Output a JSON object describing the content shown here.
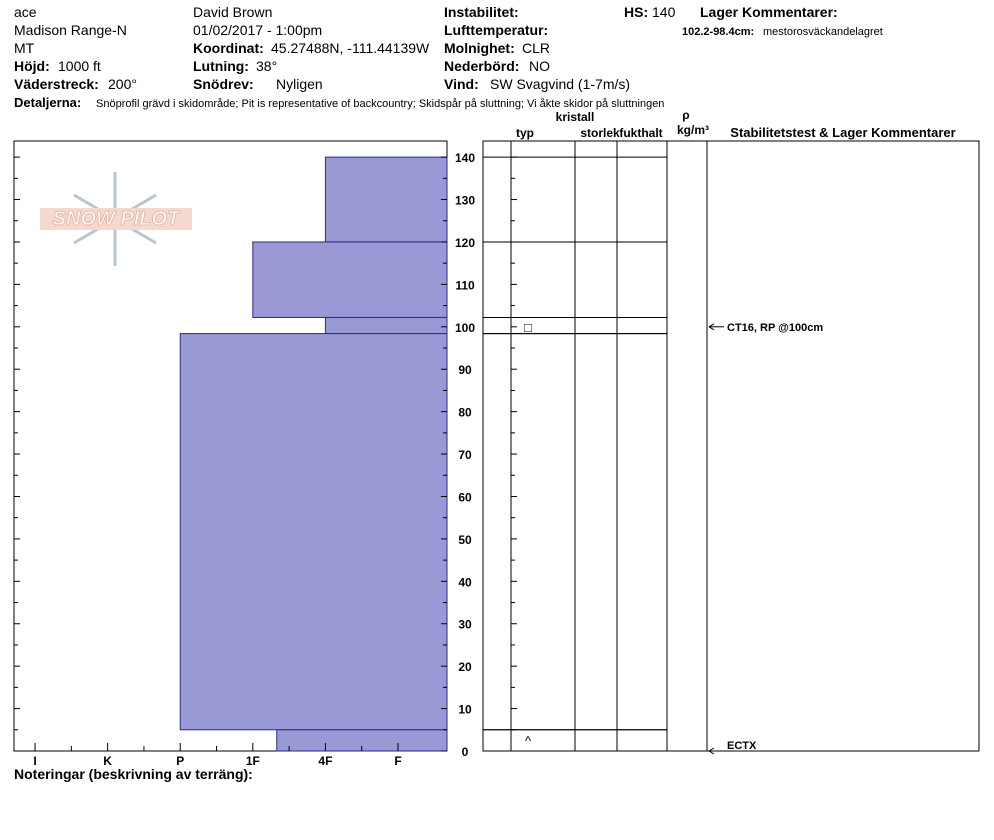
{
  "header": {
    "location": "ace",
    "range": "Madison Range-N",
    "state": "MT",
    "elevation_label": "Höjd:",
    "elevation": "1000 ft",
    "aspect_label": "Väderstreck:",
    "aspect": "200°",
    "observer": "David Brown",
    "datetime": "01/02/2017 - 1:00pm",
    "coord_label": "Koordinat:",
    "coord": "45.27488N, -111.44139W",
    "slope_label": "Lutning:",
    "slope": "38°",
    "transport_label": "Snödrev:",
    "transport": "Nyligen",
    "instability_label": "Instabilitet:",
    "air_temp_label": "Lufttemperatur:",
    "sky_label": "Molnighet:",
    "sky": "CLR",
    "precip_label": "Nederbörd:",
    "precip": "NO",
    "wind_label": "Vind:",
    "wind": "SW  Svagvind (1-7m/s)",
    "hs_label": "HS:",
    "hs": 140,
    "layer_comments_label": "Lager Kommentarer:",
    "layer_comment_depth": "102.2-98.4cm:",
    "layer_comment": "mestorosväckandelagret",
    "details_label": "Detaljerna:",
    "details": "Snöprofil grävd i skidområde;  Pit is representative of backcountry;  Skidspår på sluttning;  Vi åkte skidor på sluttningen"
  },
  "logo": "SNOW PILOT",
  "notes_label": "Noteringar (beskrivning av terräng):",
  "columns": {
    "type": "typ",
    "size_top": "kristall",
    "size": "storlek",
    "moisture": "fukthalt",
    "density_top": "ρ",
    "density": "kg/m³",
    "tests": "Stabilitetstest & Lager Kommentarer"
  },
  "chart_data": {
    "type": "snow-profile",
    "xlim": [
      0.325,
      6.29
    ],
    "xticks": [
      {
        "value": 6,
        "label": "I"
      },
      {
        "value": 5,
        "label": "K"
      },
      {
        "value": 4,
        "label": "P"
      },
      {
        "value": 3,
        "label": "1F"
      },
      {
        "value": 2,
        "label": "4F"
      },
      {
        "value": 1,
        "label": "F"
      }
    ],
    "ylim": [
      0,
      143.8
    ],
    "yticks": [
      0,
      10,
      20,
      30,
      40,
      50,
      60,
      70,
      80,
      90,
      100,
      110,
      120,
      130,
      140
    ],
    "color": "#9999d6",
    "layers": [
      {
        "top": 140,
        "bottom": 120,
        "hardness": 2
      },
      {
        "top": 120,
        "bottom": 102.2,
        "hardness": 3
      },
      {
        "top": 102.2,
        "bottom": 98.4,
        "hardness": 2
      },
      {
        "top": 98.4,
        "bottom": 5,
        "hardness": 4
      },
      {
        "top": 5,
        "bottom": 0,
        "hardness": 2.67
      }
    ],
    "grains": [
      {
        "depth": 100,
        "symbol": "□"
      },
      {
        "depth": 2.5,
        "symbol": "^"
      }
    ],
    "tests": [
      {
        "depth": 100,
        "text": "CT16, RP @100cm"
      },
      {
        "depth": 0,
        "text": "ECTX"
      }
    ]
  }
}
